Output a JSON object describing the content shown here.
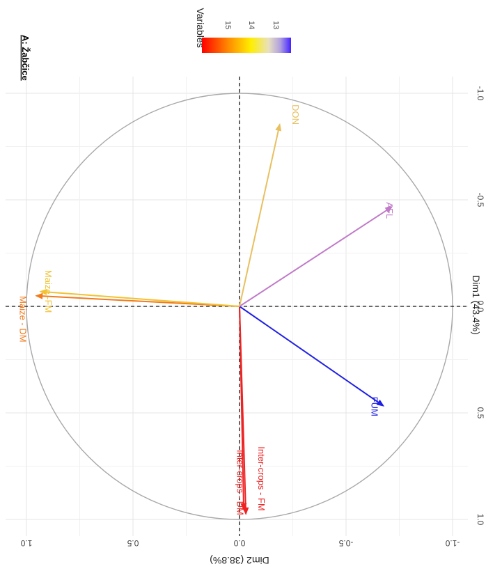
{
  "chart_data": {
    "type": "scatter",
    "subtype": "pca-variable-correlation-circle",
    "panel_title": "A: Žabčice",
    "xlabel": "Dim1 (43.4%)",
    "ylabel": "Dim2 (38.8%)",
    "xlim": [
      -1.0,
      1.0
    ],
    "ylim": [
      -1.0,
      1.0
    ],
    "x_ticks": [
      "-1.0",
      "-0.5",
      "0.0",
      "0.5",
      "1.0"
    ],
    "y_ticks": [
      "-1.0",
      "-0.5",
      "0.0",
      "0.5",
      "1.0"
    ],
    "grid": true,
    "unit_circle": true,
    "legend": {
      "title": "Variables",
      "type": "gradient",
      "ticks": [
        "15",
        "14",
        "13"
      ],
      "colors": [
        "#ff0000",
        "#ff8c00",
        "#ffee00",
        "#e8e0c0",
        "#b0a0e0",
        "#4422ff"
      ]
    },
    "variables": [
      {
        "name": "Inter-crops - DM",
        "x": 0.98,
        "y": -0.03,
        "color": "#ee2222"
      },
      {
        "name": "Inter-crops - FM",
        "x": 0.96,
        "y": -0.02,
        "color": "#ee2222"
      },
      {
        "name": "FUM",
        "x": 0.47,
        "y": -0.68,
        "color": "#1f1fe6"
      },
      {
        "name": "Maize - DM",
        "x": -0.05,
        "y": 0.96,
        "color": "#f27a1a"
      },
      {
        "name": "Maize -FM",
        "x": -0.07,
        "y": 0.94,
        "color": "#f2c230"
      },
      {
        "name": "AFL",
        "x": -0.47,
        "y": -0.72,
        "color": "#c07ac8"
      },
      {
        "name": "DON",
        "x": -0.86,
        "y": -0.19,
        "color": "#e8c060"
      }
    ]
  }
}
